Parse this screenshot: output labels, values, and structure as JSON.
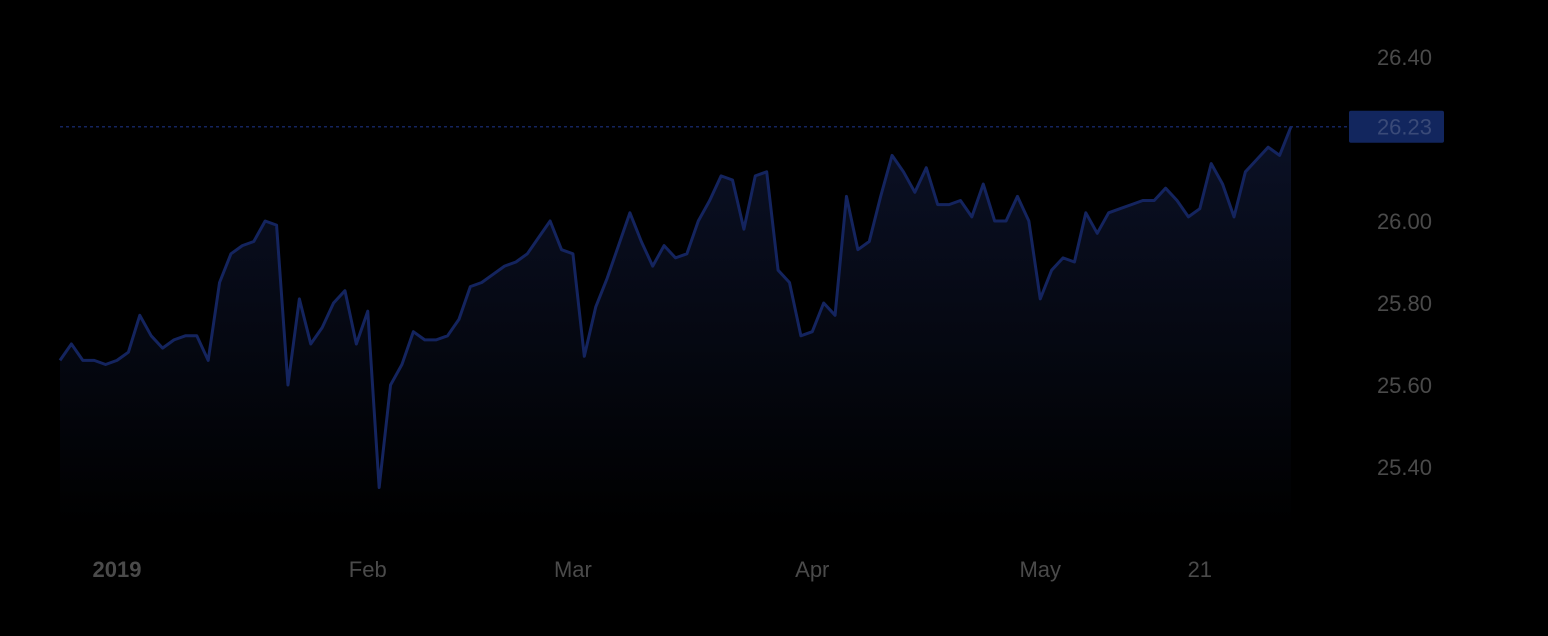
{
  "chart_data": {
    "type": "area",
    "x_labels": [
      {
        "label": "2019",
        "index": 5,
        "bold": true
      },
      {
        "label": "Feb",
        "index": 27,
        "bold": false
      },
      {
        "label": "Mar",
        "index": 45,
        "bold": false
      },
      {
        "label": "Apr",
        "index": 66,
        "bold": false
      },
      {
        "label": "May",
        "index": 86,
        "bold": false
      },
      {
        "label": "21",
        "index": 100,
        "bold": false
      }
    ],
    "y_ticks": [
      "26.40",
      "26.00",
      "25.80",
      "25.60",
      "25.40"
    ],
    "ylim": [
      25.25,
      26.5
    ],
    "last_value_label": "26.23",
    "last_value": 26.23,
    "grid": false,
    "colors": {
      "line": "#14245e",
      "fill_top": "#0b1126",
      "fill_bottom": "#000000",
      "tag_bg": "#12265e",
      "tick_text": "#4a4a4a"
    },
    "series": [
      {
        "values": [
          25.66,
          25.7,
          25.66,
          25.66,
          25.65,
          25.66,
          25.68,
          25.77,
          25.72,
          25.69,
          25.71,
          25.72,
          25.72,
          25.66,
          25.85,
          25.92,
          25.94,
          25.95,
          26.0,
          25.99,
          25.6,
          25.81,
          25.7,
          25.74,
          25.8,
          25.83,
          25.7,
          25.78,
          25.35,
          25.6,
          25.65,
          25.73,
          25.71,
          25.71,
          25.72,
          25.76,
          25.84,
          25.85,
          25.87,
          25.89,
          25.9,
          25.92,
          25.96,
          26.0,
          25.93,
          25.92,
          25.67,
          25.79,
          25.86,
          25.94,
          26.02,
          25.95,
          25.89,
          25.94,
          25.91,
          25.92,
          26.0,
          26.05,
          26.11,
          26.1,
          25.98,
          26.11,
          26.12,
          25.88,
          25.85,
          25.72,
          25.73,
          25.8,
          25.77,
          26.06,
          25.93,
          25.95,
          26.06,
          26.16,
          26.12,
          26.07,
          26.13,
          26.04,
          26.04,
          26.05,
          26.01,
          26.09,
          26.0,
          26.0,
          26.06,
          26.0,
          25.81,
          25.88,
          25.91,
          25.9,
          26.02,
          25.97,
          26.02,
          26.03,
          26.04,
          26.05,
          26.05,
          26.08,
          26.05,
          26.01,
          26.03,
          26.14,
          26.09,
          26.01,
          26.12,
          26.15,
          26.18,
          26.16,
          26.23
        ]
      }
    ]
  }
}
